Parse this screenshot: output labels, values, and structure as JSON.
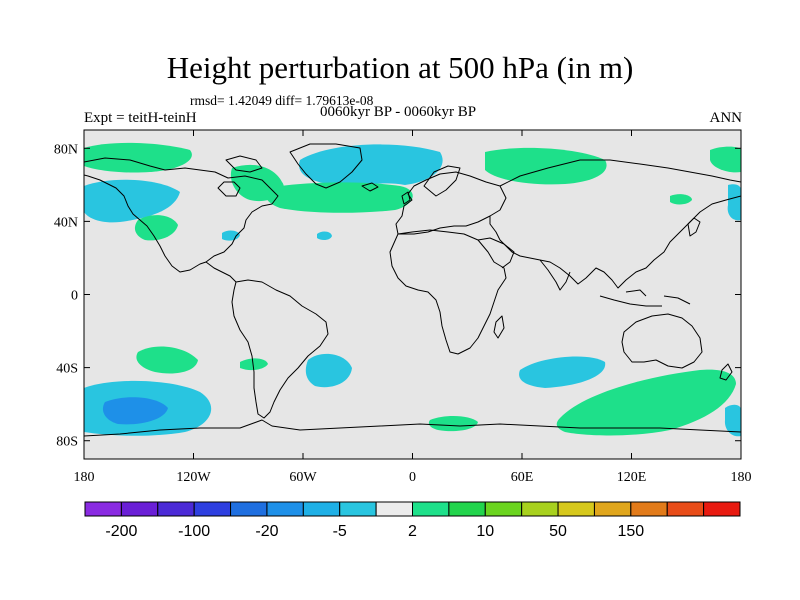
{
  "title": "Height perturbation at 500 hPa (in m)",
  "stats": "rmsd= 1.42049 diff= 1.79613e-08",
  "experiment": "Expt = teitH-teinH",
  "period": "0060kyr BP - 0060kyr BP",
  "season": "ANN",
  "map": {
    "background": "#e6e6e6",
    "lon_range": [
      -180,
      180
    ],
    "lat_range": [
      -90,
      90
    ],
    "x_ticks": [
      {
        "lon": -180,
        "label": "180"
      },
      {
        "lon": -120,
        "label": "120W"
      },
      {
        "lon": -60,
        "label": "60W"
      },
      {
        "lon": 0,
        "label": "0"
      },
      {
        "lon": 60,
        "label": "60E"
      },
      {
        "lon": 120,
        "label": "120E"
      },
      {
        "lon": 180,
        "label": "180"
      }
    ],
    "y_ticks": [
      {
        "lat": 80,
        "label": "80N"
      },
      {
        "lat": 40,
        "label": "40N"
      },
      {
        "lat": 0,
        "label": "0"
      },
      {
        "lat": -40,
        "label": "40S"
      },
      {
        "lat": -80,
        "label": "80S"
      }
    ]
  },
  "colorbar": {
    "colors": [
      "#8a2be2",
      "#6a1fd6",
      "#4b2ad6",
      "#2e3fe0",
      "#1f6fe0",
      "#1e90e8",
      "#1fb0e6",
      "#29c5e0",
      "#ececec",
      "#1ee08a",
      "#22d44c",
      "#6bd41f",
      "#a8d11e",
      "#d6c81c",
      "#e0a61c",
      "#e27b1a",
      "#e84c18",
      "#e81a10"
    ],
    "labels": [
      {
        "index": 1,
        "text": "-200"
      },
      {
        "index": 3,
        "text": "-100"
      },
      {
        "index": 5,
        "text": "-20"
      },
      {
        "index": 7,
        "text": "-5"
      },
      {
        "index": 9,
        "text": "2"
      },
      {
        "index": 11,
        "text": "10"
      },
      {
        "index": 13,
        "text": "50"
      },
      {
        "index": 15,
        "text": "150"
      }
    ]
  }
}
